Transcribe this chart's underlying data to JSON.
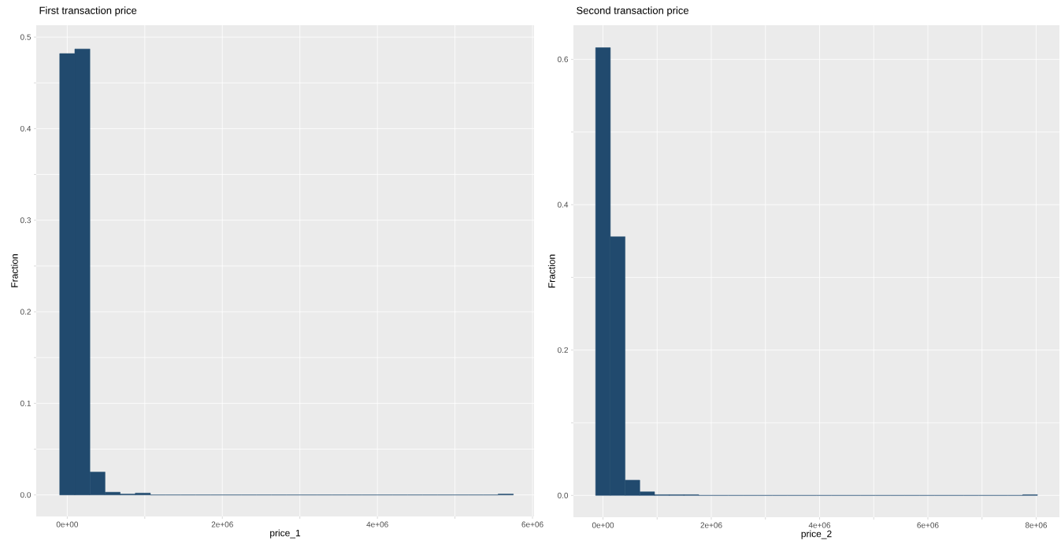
{
  "chart_data": [
    {
      "type": "histogram",
      "title": "First transaction price",
      "xlabel": "price_1",
      "ylabel": "Fraction",
      "color": "#214a6e",
      "bins": [
        -97500,
        97500,
        292500,
        487500,
        682500,
        877500,
        1072500,
        1267500,
        1462500,
        1657500,
        1852500,
        2047500,
        2242500,
        2437500,
        2632500,
        2827500,
        3022500,
        3217500,
        3412500,
        3607500,
        3802500,
        3997500,
        4192500,
        4387500,
        4582500,
        4777500,
        4972500,
        5167500,
        5362500,
        5557500,
        5752500
      ],
      "values": [
        0.482,
        0.487,
        0.025,
        0.003,
        0.001,
        0.002,
        0,
        0,
        0,
        0,
        0,
        0,
        0,
        0,
        0,
        0,
        0,
        0,
        0,
        0,
        0,
        0,
        0,
        0,
        0,
        0,
        0,
        0,
        0,
        0.001
      ],
      "xlim": [
        -400000,
        6020000
      ],
      "ylim": [
        -0.0235,
        0.513
      ],
      "xticks": [
        {
          "value": 0,
          "label": "0e+00"
        },
        {
          "value": 1000000,
          "label": null
        },
        {
          "value": 2000000,
          "label": "2e+06"
        },
        {
          "value": 3000000,
          "label": null
        },
        {
          "value": 4000000,
          "label": "4e+06"
        },
        {
          "value": 5000000,
          "label": null
        },
        {
          "value": 6000000,
          "label": "6e+06"
        }
      ],
      "yticks": [
        {
          "value": 0,
          "label": "0.0"
        },
        {
          "value": 0.05,
          "label": null
        },
        0.1,
        {
          "value": 0.15,
          "label": null
        },
        0.2,
        {
          "value": 0.25,
          "label": null
        },
        0.3,
        {
          "value": 0.35,
          "label": null
        },
        0.4,
        {
          "value": 0.45,
          "label": null
        },
        0.5
      ],
      "grid": true
    },
    {
      "type": "histogram",
      "title": "Second transaction price",
      "xlabel": "price_2",
      "ylabel": "Fraction",
      "color": "#214a6e",
      "bins": [
        -136000,
        136000,
        408000,
        680000,
        952000,
        1224000,
        1496000,
        1768000,
        2040000,
        2312000,
        2584000,
        2856000,
        3128000,
        3400000,
        3672000,
        3944000,
        4216000,
        4488000,
        4760000,
        5032000,
        5304000,
        5576000,
        5848000,
        6120000,
        6392000,
        6664000,
        6936000,
        7208000,
        7480000,
        7752000,
        8024000
      ],
      "values": [
        0.616,
        0.356,
        0.021,
        0.005,
        0.001,
        0.001,
        0.001,
        0,
        0,
        0,
        0,
        0,
        0,
        0,
        0,
        0,
        0,
        0,
        0,
        0,
        0,
        0,
        0,
        0,
        0,
        0,
        0,
        0,
        0,
        0.001
      ],
      "xlim": [
        -546000,
        8430000
      ],
      "ylim": [
        -0.03,
        0.647
      ],
      "xticks": [
        {
          "value": 0,
          "label": "0e+00"
        },
        {
          "value": 1000000,
          "label": null
        },
        {
          "value": 2000000,
          "label": "2e+06"
        },
        {
          "value": 3000000,
          "label": null
        },
        {
          "value": 4000000,
          "label": "4e+06"
        },
        {
          "value": 5000000,
          "label": null
        },
        {
          "value": 6000000,
          "label": "6e+06"
        },
        {
          "value": 7000000,
          "label": null
        },
        {
          "value": 8000000,
          "label": "8e+06"
        }
      ],
      "yticks": [
        {
          "value": 0,
          "label": "0.0"
        },
        {
          "value": 0.1,
          "label": null
        },
        {
          "value": 0.2,
          "label": "0.2"
        },
        {
          "value": 0.3,
          "label": null
        },
        {
          "value": 0.4,
          "label": "0.4"
        },
        {
          "value": 0.5,
          "label": null
        },
        {
          "value": 0.6,
          "label": "0.6"
        }
      ],
      "grid": true
    }
  ]
}
